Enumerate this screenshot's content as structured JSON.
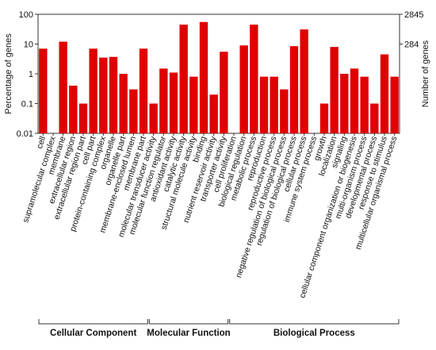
{
  "colors": {
    "bar": "#e00000",
    "axis": "#333333"
  },
  "chart_data": {
    "type": "bar",
    "ylabel_left": "Percentage of genes",
    "ylabel_right": "Number of genes",
    "yscale": "log",
    "ylim": [
      0.01,
      100
    ],
    "yticks_left": [
      "100",
      "10",
      "1",
      "0.1",
      "0.01"
    ],
    "yticks_right": [
      "2845",
      "284"
    ],
    "categories": [
      "cell",
      "supramolecular complex",
      "membrane",
      "extracellular region",
      "extracellular region part",
      "cell part",
      "protein-containing complex",
      "organelle",
      "organelle part",
      "membrane-enclosed lumen",
      "membrane part",
      "molecular transducer activity",
      "molecular function regulator",
      "antioxidant activity",
      "catalytic activity",
      "structural molecule activity",
      "binding",
      "nutrient reservoir activity",
      "transporter activity",
      "cell proliferation",
      "biological regulation",
      "metabolic process",
      "reproduction",
      "reproductive process",
      "negative regulation of biological process",
      "regulation of biological process",
      "cellular process",
      "immune system process",
      "growth",
      "localization",
      "signaling",
      "cellular component organization or biogenesis",
      "multi-organism process",
      "developmental process",
      "response to stimulus",
      "multicellular organismal process"
    ],
    "values": [
      7,
      0.01,
      12,
      0.4,
      0.1,
      7,
      3.5,
      3.7,
      1.0,
      0.3,
      7,
      0.1,
      1.5,
      1.1,
      45,
      0.8,
      55,
      0.2,
      5.5,
      0.01,
      9,
      45,
      0.8,
      0.8,
      0.3,
      8.5,
      31,
      0.01,
      0.1,
      8,
      1.0,
      1.5,
      0.8,
      0.1,
      4.5,
      0.8
    ],
    "groups": [
      {
        "name": "Cellular Component",
        "start": 0,
        "end": 10
      },
      {
        "name": "Molecular Function",
        "start": 11,
        "end": 18
      },
      {
        "name": "Biological Process",
        "start": 19,
        "end": 35
      }
    ]
  }
}
